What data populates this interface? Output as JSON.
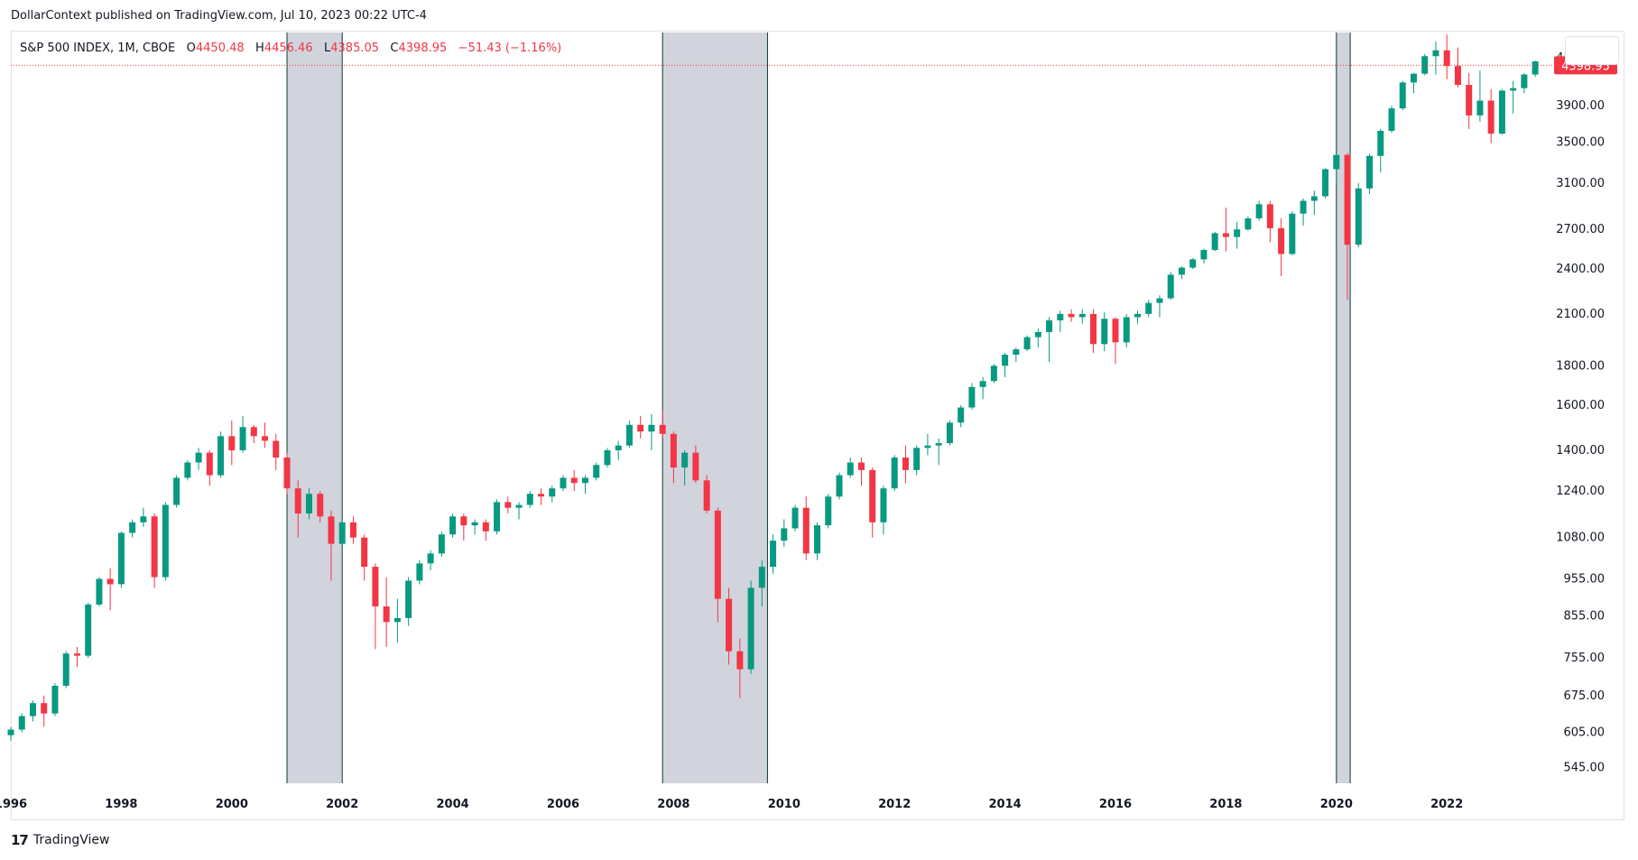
{
  "publisher": "DollarContext published on TradingView.com, Jul 10, 2023 00:22 UTC-4",
  "footer_brand": "TradingView",
  "footer_mark": "17",
  "legend": {
    "symbol": "S&P 500 INDEX, 1M, CBOE",
    "o_label": "O",
    "o_value": "4450.48",
    "h_label": "H",
    "h_value": "4456.46",
    "l_label": "L",
    "l_value": "4385.05",
    "c_label": "C",
    "c_value": "4398.95",
    "change": "−51.43 (−1.16%)"
  },
  "colors": {
    "up": "#089981",
    "down": "#f23645",
    "recession_fill": "#d1d4dc",
    "recession_edge": "#0b3a2f"
  },
  "chart_data": {
    "type": "candlestick",
    "title": "",
    "xlabel": "",
    "ylabel": "",
    "scale": "log",
    "ylim": [
      520,
      4850
    ],
    "xlim": [
      1996.0,
      2023.95
    ],
    "grid": false,
    "last_price": 4398.95,
    "x_ticks": [
      {
        "value": 1996,
        "label": "1996"
      },
      {
        "value": 1998,
        "label": "1998"
      },
      {
        "value": 2000,
        "label": "2000"
      },
      {
        "value": 2002,
        "label": "2002"
      },
      {
        "value": 2004,
        "label": "2004"
      },
      {
        "value": 2006,
        "label": "2006"
      },
      {
        "value": 2008,
        "label": "2008"
      },
      {
        "value": 2010,
        "label": "2010"
      },
      {
        "value": 2012,
        "label": "2012"
      },
      {
        "value": 2014,
        "label": "2014"
      },
      {
        "value": 2016,
        "label": "2016"
      },
      {
        "value": 2018,
        "label": "2018"
      },
      {
        "value": 2020,
        "label": "2020"
      },
      {
        "value": 2022,
        "label": "2022"
      }
    ],
    "y_ticks": [
      {
        "value": 545,
        "label": "545.00"
      },
      {
        "value": 605,
        "label": "605.00"
      },
      {
        "value": 675,
        "label": "675.00"
      },
      {
        "value": 755,
        "label": "755.00"
      },
      {
        "value": 855,
        "label": "855.00"
      },
      {
        "value": 955,
        "label": "955.00"
      },
      {
        "value": 1080,
        "label": "1080.00"
      },
      {
        "value": 1240,
        "label": "1240.00"
      },
      {
        "value": 1400,
        "label": "1400.00"
      },
      {
        "value": 1600,
        "label": "1600.00"
      },
      {
        "value": 1800,
        "label": "1800.00"
      },
      {
        "value": 2100,
        "label": "2100.00"
      },
      {
        "value": 2400,
        "label": "2400.00"
      },
      {
        "value": 2700,
        "label": "2700.00"
      },
      {
        "value": 3100,
        "label": "3100.00"
      },
      {
        "value": 3500,
        "label": "3500.00"
      },
      {
        "value": 3900,
        "label": "3900.00"
      },
      {
        "value": 4500,
        "label": "4500.00"
      }
    ],
    "recessions": [
      {
        "start": 2001.0,
        "end": 2002.0
      },
      {
        "start": 2007.8,
        "end": 2009.7
      },
      {
        "start": 2020.0,
        "end": 2020.25
      }
    ],
    "series": [
      {
        "values": [
          [
            1996.0,
            600,
            615,
            590,
            610
          ],
          [
            1996.2,
            610,
            640,
            605,
            635
          ],
          [
            1996.4,
            635,
            665,
            625,
            660
          ],
          [
            1996.6,
            660,
            675,
            615,
            640
          ],
          [
            1996.8,
            640,
            700,
            635,
            695
          ],
          [
            1997.0,
            695,
            770,
            690,
            765
          ],
          [
            1997.2,
            765,
            780,
            735,
            760
          ],
          [
            1997.4,
            760,
            890,
            755,
            885
          ],
          [
            1997.6,
            885,
            960,
            880,
            955
          ],
          [
            1997.8,
            955,
            985,
            870,
            940
          ],
          [
            1998.0,
            940,
            1100,
            930,
            1095
          ],
          [
            1998.2,
            1095,
            1140,
            1080,
            1130
          ],
          [
            1998.4,
            1130,
            1180,
            1115,
            1150
          ],
          [
            1998.6,
            1150,
            1160,
            930,
            960
          ],
          [
            1998.8,
            960,
            1200,
            950,
            1190
          ],
          [
            1999.0,
            1190,
            1300,
            1180,
            1290
          ],
          [
            1999.2,
            1290,
            1360,
            1280,
            1350
          ],
          [
            1999.4,
            1350,
            1410,
            1320,
            1390
          ],
          [
            1999.6,
            1390,
            1400,
            1260,
            1300
          ],
          [
            1999.8,
            1300,
            1480,
            1290,
            1460
          ],
          [
            2000.0,
            1460,
            1530,
            1340,
            1400
          ],
          [
            2000.2,
            1400,
            1550,
            1390,
            1500
          ],
          [
            2000.4,
            1500,
            1510,
            1430,
            1460
          ],
          [
            2000.6,
            1460,
            1520,
            1410,
            1440
          ],
          [
            2000.8,
            1440,
            1470,
            1320,
            1370
          ],
          [
            2001.0,
            1370,
            1390,
            1230,
            1250
          ],
          [
            2001.2,
            1250,
            1280,
            1080,
            1160
          ],
          [
            2001.4,
            1160,
            1250,
            1140,
            1230
          ],
          [
            2001.6,
            1230,
            1240,
            1130,
            1150
          ],
          [
            2001.8,
            1150,
            1170,
            950,
            1060
          ],
          [
            2002.0,
            1060,
            1140,
            1050,
            1130
          ],
          [
            2002.2,
            1130,
            1150,
            1060,
            1080
          ],
          [
            2002.4,
            1080,
            1090,
            950,
            990
          ],
          [
            2002.6,
            990,
            1000,
            775,
            880
          ],
          [
            2002.8,
            880,
            960,
            780,
            840
          ],
          [
            2003.0,
            840,
            900,
            790,
            850
          ],
          [
            2003.2,
            850,
            960,
            830,
            950
          ],
          [
            2003.4,
            950,
            1010,
            940,
            1000
          ],
          [
            2003.6,
            1000,
            1040,
            980,
            1030
          ],
          [
            2003.8,
            1030,
            1100,
            1020,
            1090
          ],
          [
            2004.0,
            1090,
            1160,
            1080,
            1150
          ],
          [
            2004.2,
            1150,
            1160,
            1070,
            1120
          ],
          [
            2004.4,
            1120,
            1140,
            1090,
            1130
          ],
          [
            2004.6,
            1130,
            1140,
            1070,
            1100
          ],
          [
            2004.8,
            1100,
            1210,
            1090,
            1200
          ],
          [
            2005.0,
            1200,
            1220,
            1160,
            1180
          ],
          [
            2005.2,
            1180,
            1200,
            1140,
            1190
          ],
          [
            2005.4,
            1190,
            1240,
            1180,
            1230
          ],
          [
            2005.6,
            1230,
            1250,
            1190,
            1220
          ],
          [
            2005.8,
            1220,
            1260,
            1200,
            1250
          ],
          [
            2006.0,
            1250,
            1300,
            1240,
            1290
          ],
          [
            2006.2,
            1290,
            1320,
            1240,
            1270
          ],
          [
            2006.4,
            1270,
            1300,
            1230,
            1290
          ],
          [
            2006.6,
            1290,
            1350,
            1280,
            1340
          ],
          [
            2006.8,
            1340,
            1410,
            1330,
            1400
          ],
          [
            2007.0,
            1400,
            1440,
            1360,
            1420
          ],
          [
            2007.2,
            1420,
            1530,
            1410,
            1510
          ],
          [
            2007.4,
            1510,
            1550,
            1450,
            1480
          ],
          [
            2007.6,
            1480,
            1560,
            1400,
            1510
          ],
          [
            2007.8,
            1510,
            1580,
            1450,
            1470
          ],
          [
            2008.0,
            1470,
            1480,
            1270,
            1330
          ],
          [
            2008.2,
            1330,
            1400,
            1260,
            1390
          ],
          [
            2008.4,
            1390,
            1420,
            1270,
            1280
          ],
          [
            2008.6,
            1280,
            1300,
            1160,
            1170
          ],
          [
            2008.8,
            1170,
            1180,
            840,
            900
          ],
          [
            2009.0,
            900,
            930,
            740,
            770
          ],
          [
            2009.2,
            770,
            800,
            670,
            730
          ],
          [
            2009.4,
            730,
            950,
            720,
            930
          ],
          [
            2009.6,
            930,
            1010,
            880,
            990
          ],
          [
            2009.8,
            990,
            1090,
            970,
            1070
          ],
          [
            2010.0,
            1070,
            1140,
            1050,
            1110
          ],
          [
            2010.2,
            1110,
            1190,
            1100,
            1180
          ],
          [
            2010.4,
            1180,
            1220,
            1010,
            1030
          ],
          [
            2010.6,
            1030,
            1130,
            1010,
            1120
          ],
          [
            2010.8,
            1120,
            1230,
            1110,
            1220
          ],
          [
            2011.0,
            1220,
            1310,
            1210,
            1300
          ],
          [
            2011.2,
            1300,
            1370,
            1290,
            1350
          ],
          [
            2011.4,
            1350,
            1370,
            1260,
            1320
          ],
          [
            2011.6,
            1320,
            1330,
            1080,
            1130
          ],
          [
            2011.8,
            1130,
            1260,
            1090,
            1250
          ],
          [
            2012.0,
            1250,
            1380,
            1240,
            1370
          ],
          [
            2012.2,
            1370,
            1420,
            1270,
            1320
          ],
          [
            2012.4,
            1320,
            1420,
            1300,
            1410
          ],
          [
            2012.6,
            1410,
            1470,
            1380,
            1420
          ],
          [
            2012.8,
            1420,
            1450,
            1340,
            1430
          ],
          [
            2013.0,
            1430,
            1530,
            1420,
            1520
          ],
          [
            2013.2,
            1520,
            1600,
            1500,
            1590
          ],
          [
            2013.4,
            1590,
            1710,
            1580,
            1690
          ],
          [
            2013.6,
            1690,
            1740,
            1630,
            1720
          ],
          [
            2013.8,
            1720,
            1810,
            1710,
            1800
          ],
          [
            2014.0,
            1800,
            1870,
            1740,
            1860
          ],
          [
            2014.2,
            1860,
            1900,
            1820,
            1890
          ],
          [
            2014.4,
            1890,
            1970,
            1880,
            1960
          ],
          [
            2014.6,
            1960,
            2010,
            1900,
            1990
          ],
          [
            2014.8,
            1990,
            2080,
            1820,
            2060
          ],
          [
            2015.0,
            2060,
            2120,
            1990,
            2100
          ],
          [
            2015.2,
            2100,
            2130,
            2050,
            2080
          ],
          [
            2015.4,
            2080,
            2130,
            2040,
            2100
          ],
          [
            2015.6,
            2100,
            2130,
            1870,
            1920
          ],
          [
            2015.8,
            1920,
            2110,
            1880,
            2070
          ],
          [
            2016.0,
            2070,
            2080,
            1810,
            1930
          ],
          [
            2016.2,
            1930,
            2100,
            1900,
            2080
          ],
          [
            2016.4,
            2080,
            2120,
            2040,
            2100
          ],
          [
            2016.6,
            2100,
            2190,
            2080,
            2170
          ],
          [
            2016.8,
            2170,
            2220,
            2080,
            2200
          ],
          [
            2017.0,
            2200,
            2380,
            2190,
            2360
          ],
          [
            2017.2,
            2360,
            2420,
            2330,
            2410
          ],
          [
            2017.4,
            2410,
            2480,
            2400,
            2470
          ],
          [
            2017.6,
            2470,
            2550,
            2440,
            2540
          ],
          [
            2017.8,
            2540,
            2680,
            2530,
            2670
          ],
          [
            2018.0,
            2670,
            2880,
            2530,
            2640
          ],
          [
            2018.2,
            2640,
            2760,
            2550,
            2700
          ],
          [
            2018.4,
            2700,
            2810,
            2690,
            2790
          ],
          [
            2018.6,
            2790,
            2940,
            2770,
            2910
          ],
          [
            2018.8,
            2910,
            2940,
            2600,
            2710
          ],
          [
            2019.0,
            2710,
            2790,
            2350,
            2510
          ],
          [
            2019.2,
            2510,
            2850,
            2500,
            2830
          ],
          [
            2019.4,
            2830,
            2960,
            2730,
            2940
          ],
          [
            2019.6,
            2940,
            3030,
            2820,
            2980
          ],
          [
            2019.8,
            2980,
            3240,
            2960,
            3230
          ],
          [
            2020.0,
            3230,
            3390,
            3100,
            3370
          ],
          [
            2020.2,
            3370,
            3390,
            2190,
            2580
          ],
          [
            2020.4,
            2580,
            3100,
            2560,
            3050
          ],
          [
            2020.6,
            3050,
            3380,
            3000,
            3360
          ],
          [
            2020.8,
            3360,
            3640,
            3200,
            3620
          ],
          [
            2021.0,
            3620,
            3900,
            3600,
            3870
          ],
          [
            2021.2,
            3870,
            4200,
            3850,
            4180
          ],
          [
            2021.4,
            4180,
            4300,
            4050,
            4290
          ],
          [
            2021.6,
            4290,
            4550,
            4270,
            4520
          ],
          [
            2021.8,
            4520,
            4720,
            4280,
            4600
          ],
          [
            2022.0,
            4600,
            4820,
            4220,
            4390
          ],
          [
            2022.2,
            4390,
            4640,
            4120,
            4150
          ],
          [
            2022.4,
            4150,
            4300,
            3640,
            3790
          ],
          [
            2022.6,
            3790,
            4330,
            3720,
            3960
          ],
          [
            2022.8,
            3960,
            4100,
            3490,
            3590
          ],
          [
            2023.0,
            3590,
            4100,
            3580,
            4080
          ],
          [
            2023.2,
            4080,
            4200,
            3810,
            4110
          ],
          [
            2023.4,
            4110,
            4300,
            4050,
            4280
          ],
          [
            2023.6,
            4280,
            4460,
            4250,
            4450
          ]
        ]
      }
    ]
  }
}
